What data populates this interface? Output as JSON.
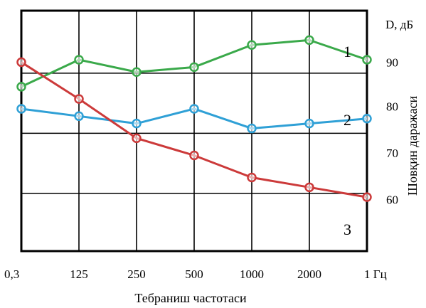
{
  "chart_data": {
    "type": "line",
    "categories": [
      "0,3",
      "125",
      "250",
      "500",
      "1000",
      "2000",
      "1 Гц"
    ],
    "xlabel": "Тебраниш частотаси",
    "ylabel": "Шовқин даражаси",
    "yunit": "D, дБ",
    "yticks": [
      "90",
      "80",
      "70",
      "60"
    ],
    "ylim": [
      50,
      99
    ],
    "grid": true,
    "series": [
      {
        "name": "1",
        "color": "#3aa94a",
        "values": [
          83.5,
          89,
          86.5,
          87.5,
          92,
          93,
          89
        ]
      },
      {
        "name": "2",
        "color": "#2fa0d6",
        "values": [
          79,
          77.5,
          76,
          79,
          75,
          76,
          77
        ]
      },
      {
        "name": "3",
        "color": "#cc3a3a",
        "values": [
          88.5,
          81,
          73,
          69.5,
          65,
          63,
          61
        ]
      }
    ]
  }
}
